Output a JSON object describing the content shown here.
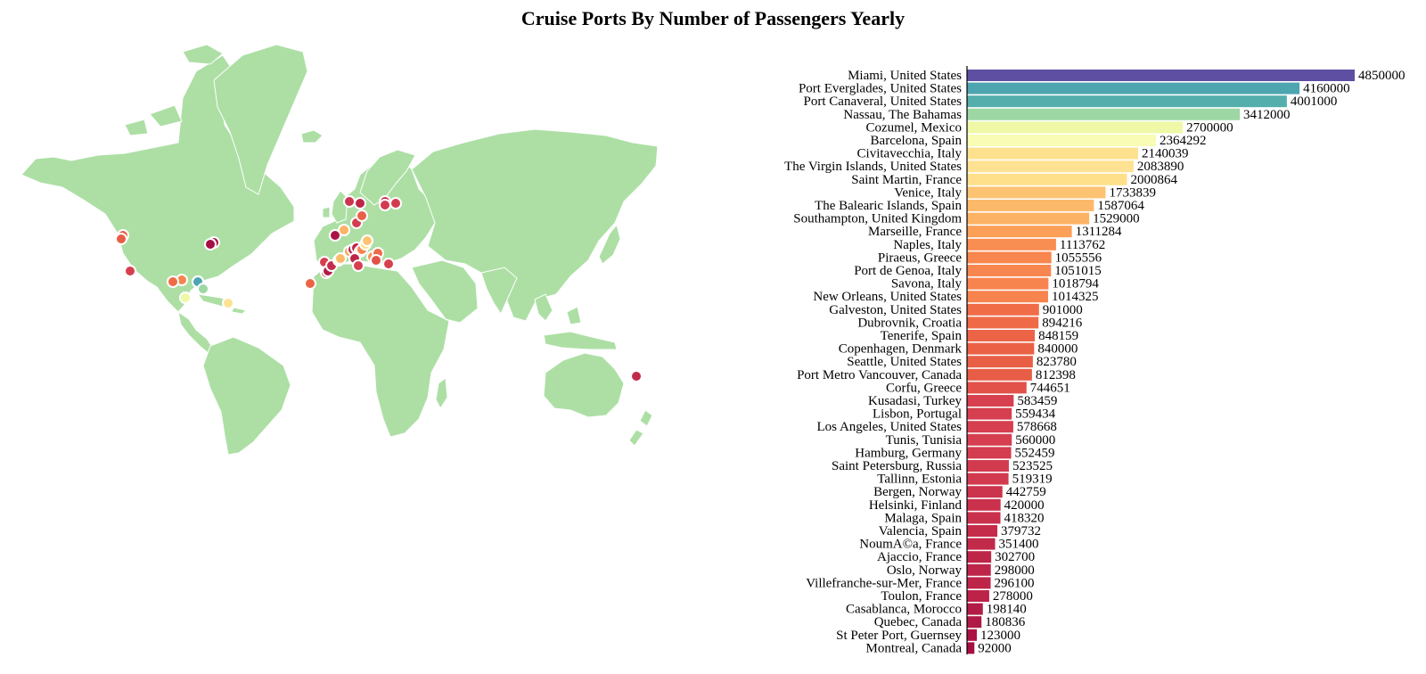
{
  "chart_data": [
    {
      "type": "map",
      "title": "Cruise Ports By Number of Passengers Yearly",
      "ports": [
        {
          "name": "Miami, United States",
          "lon": -80.2,
          "lat": 25.8
        },
        {
          "name": "Port Everglades, United States",
          "lon": -80.1,
          "lat": 26.1
        },
        {
          "name": "Port Canaveral, United States",
          "lon": -80.6,
          "lat": 28.4
        },
        {
          "name": "Nassau, The Bahamas",
          "lon": -77.3,
          "lat": 25.1
        },
        {
          "name": "Cozumel, Mexico",
          "lon": -86.9,
          "lat": 20.4
        },
        {
          "name": "Barcelona, Spain",
          "lon": 2.2,
          "lat": 41.4
        },
        {
          "name": "Civitavecchia, Italy",
          "lon": 11.8,
          "lat": 42.1
        },
        {
          "name": "The Virgin Islands, United States",
          "lon": -64.9,
          "lat": 18.3
        },
        {
          "name": "Saint Martin, France",
          "lon": -63.1,
          "lat": 18.1
        },
        {
          "name": "Venice, Italy",
          "lon": 12.3,
          "lat": 45.4
        },
        {
          "name": "The Balearic Islands, Spain",
          "lon": 2.9,
          "lat": 39.6
        },
        {
          "name": "Southampton, United Kingdom",
          "lon": -1.4,
          "lat": 50.9
        },
        {
          "name": "Marseille, France",
          "lon": 5.4,
          "lat": 43.3
        },
        {
          "name": "Naples, Italy",
          "lon": 14.3,
          "lat": 40.8
        },
        {
          "name": "Piraeus, Greece",
          "lon": 23.6,
          "lat": 37.9
        },
        {
          "name": "Port de Genoa, Italy",
          "lon": 8.9,
          "lat": 44.4
        },
        {
          "name": "Savona, Italy",
          "lon": 8.5,
          "lat": 44.3
        },
        {
          "name": "New Orleans, United States",
          "lon": -90.1,
          "lat": 29.9
        },
        {
          "name": "Galveston, United States",
          "lon": -94.8,
          "lat": 29.3
        },
        {
          "name": "Dubrovnik, Croatia",
          "lon": 18.1,
          "lat": 42.6
        },
        {
          "name": "Tenerife, Spain",
          "lon": -16.3,
          "lat": 28.5
        },
        {
          "name": "Copenhagen, Denmark",
          "lon": 12.6,
          "lat": 55.7
        },
        {
          "name": "Seattle, United States",
          "lon": -122.3,
          "lat": 47.6
        },
        {
          "name": "Port Metro Vancouver, Canada",
          "lon": -123.1,
          "lat": 49.3
        },
        {
          "name": "Corfu, Greece",
          "lon": 19.9,
          "lat": 39.6
        },
        {
          "name": "Kusadasi, Turkey",
          "lon": 27.3,
          "lat": 37.9
        },
        {
          "name": "Lisbon, Portugal",
          "lon": -9.1,
          "lat": 38.7
        },
        {
          "name": "Los Angeles, United States",
          "lon": -118.2,
          "lat": 33.7
        },
        {
          "name": "Tunis, Tunisia",
          "lon": 10.2,
          "lat": 36.8
        },
        {
          "name": "Hamburg, Germany",
          "lon": 10.0,
          "lat": 53.6
        },
        {
          "name": "Saint Petersburg, Russia",
          "lon": 30.3,
          "lat": 59.9
        },
        {
          "name": "Tallinn, Estonia",
          "lon": 24.8,
          "lat": 59.4
        },
        {
          "name": "Bergen, Norway",
          "lon": 5.3,
          "lat": 60.4
        },
        {
          "name": "Helsinki, Finland",
          "lon": 25.0,
          "lat": 60.2
        },
        {
          "name": "Malaga, Spain",
          "lon": -4.4,
          "lat": 36.7
        },
        {
          "name": "Valencia, Spain",
          "lon": -0.4,
          "lat": 39.5
        },
        {
          "name": "NoumA©a, France",
          "lon": 166.4,
          "lat": -22.3
        },
        {
          "name": "Ajaccio, France",
          "lon": 8.7,
          "lat": 41.9
        },
        {
          "name": "Oslo, Norway",
          "lon": 10.7,
          "lat": 59.9
        },
        {
          "name": "Villefranche-sur-Mer, France",
          "lon": 7.3,
          "lat": 43.7
        },
        {
          "name": "Toulon, France",
          "lon": 5.9,
          "lat": 43.1
        },
        {
          "name": "Casablanca, Morocco",
          "lon": -7.6,
          "lat": 33.6
        },
        {
          "name": "Quebec, Canada",
          "lon": -71.2,
          "lat": 46.8
        },
        {
          "name": "St Peter Port, Guernsey",
          "lon": -2.5,
          "lat": 49.5
        },
        {
          "name": "Montreal, Canada",
          "lon": -73.6,
          "lat": 45.5
        }
      ]
    },
    {
      "type": "bar",
      "orientation": "horizontal",
      "title": "Cruise Ports By Number of Passengers Yearly",
      "xlim": [
        0,
        4850000
      ],
      "categories": [
        "Miami, United States",
        "Port Everglades, United States",
        "Port Canaveral, United States",
        "Nassau, The Bahamas",
        "Cozumel, Mexico",
        "Barcelona, Spain",
        "Civitavecchia, Italy",
        "The Virgin Islands, United States",
        "Saint Martin, France",
        "Venice, Italy",
        "The Balearic Islands, Spain",
        "Southampton, United Kingdom",
        "Marseille, France",
        "Naples, Italy",
        "Piraeus, Greece",
        "Port de Genoa, Italy",
        "Savona, Italy",
        "New Orleans, United States",
        "Galveston, United States",
        "Dubrovnik, Croatia",
        "Tenerife, Spain",
        "Copenhagen, Denmark",
        "Seattle, United States",
        "Port Metro Vancouver, Canada",
        "Corfu, Greece",
        "Kusadasi, Turkey",
        "Lisbon, Portugal",
        "Los Angeles, United States",
        "Tunis, Tunisia",
        "Hamburg, Germany",
        "Saint Petersburg, Russia",
        "Tallinn, Estonia",
        "Bergen, Norway",
        "Helsinki, Finland",
        "Malaga, Spain",
        "Valencia, Spain",
        "NoumA©a, France",
        "Ajaccio, France",
        "Oslo, Norway",
        "Villefranche-sur-Mer, France",
        "Toulon, France",
        "Casablanca, Morocco",
        "Quebec, Canada",
        "St Peter Port, Guernsey",
        "Montreal, Canada"
      ],
      "values": [
        4850000,
        4160000,
        4001000,
        3412000,
        2700000,
        2364292,
        2140039,
        2083890,
        2000864,
        1733839,
        1587064,
        1529000,
        1311284,
        1113762,
        1055556,
        1051015,
        1018794,
        1014325,
        901000,
        894216,
        848159,
        840000,
        823780,
        812398,
        744651,
        583459,
        559434,
        578668,
        560000,
        552459,
        523525,
        519319,
        442759,
        420000,
        418320,
        379732,
        351400,
        302700,
        298000,
        296100,
        278000,
        198140,
        180836,
        123000,
        92000
      ],
      "value_labels": [
        "4850000",
        "4160000",
        "4001000",
        "3412000",
        "2700000",
        "2364292",
        "2140039",
        "2083890",
        "2000864",
        "1733839",
        "1587064",
        "1529000",
        "1311284",
        "1113762",
        "1055556",
        "1051015",
        "1018794",
        "1014325",
        "901000",
        "894216",
        "848159",
        "840000",
        "823780",
        "812398",
        "744651",
        "583459",
        "559434",
        "578668",
        "560000",
        "552459",
        "523525",
        "519319",
        "442759",
        "420000",
        "418320",
        "379732",
        "351400",
        "302700",
        "298000",
        "296100",
        "278000",
        "198140",
        "180836",
        "123000",
        "92000"
      ],
      "colors": [
        "#5e4fa2",
        "#4da5b0",
        "#54aeac",
        "#9cd7a4",
        "#eff8a6",
        "#f8fcb4",
        "#fee18e",
        "#fee293",
        "#fee08b",
        "#fdc372",
        "#fdb96a",
        "#fdb365",
        "#fc9f57",
        "#f98e52",
        "#f8864f",
        "#f8864f",
        "#f7844e",
        "#f7844e",
        "#f06c47",
        "#ef6a46",
        "#ec6446",
        "#ea6145",
        "#e95f45",
        "#e85d45",
        "#e25249",
        "#d7404e",
        "#d63f4f",
        "#d63f4f",
        "#d63f4f",
        "#d43d4f",
        "#d23b4f",
        "#d23b4f",
        "#cc334d",
        "#ca314c",
        "#ca314c",
        "#c52c4a",
        "#c22a49",
        "#bd2549",
        "#bd2549",
        "#bd2549",
        "#bc2348",
        "#b21c47",
        "#b01a46",
        "#a91445",
        "#a50f44"
      ]
    }
  ]
}
